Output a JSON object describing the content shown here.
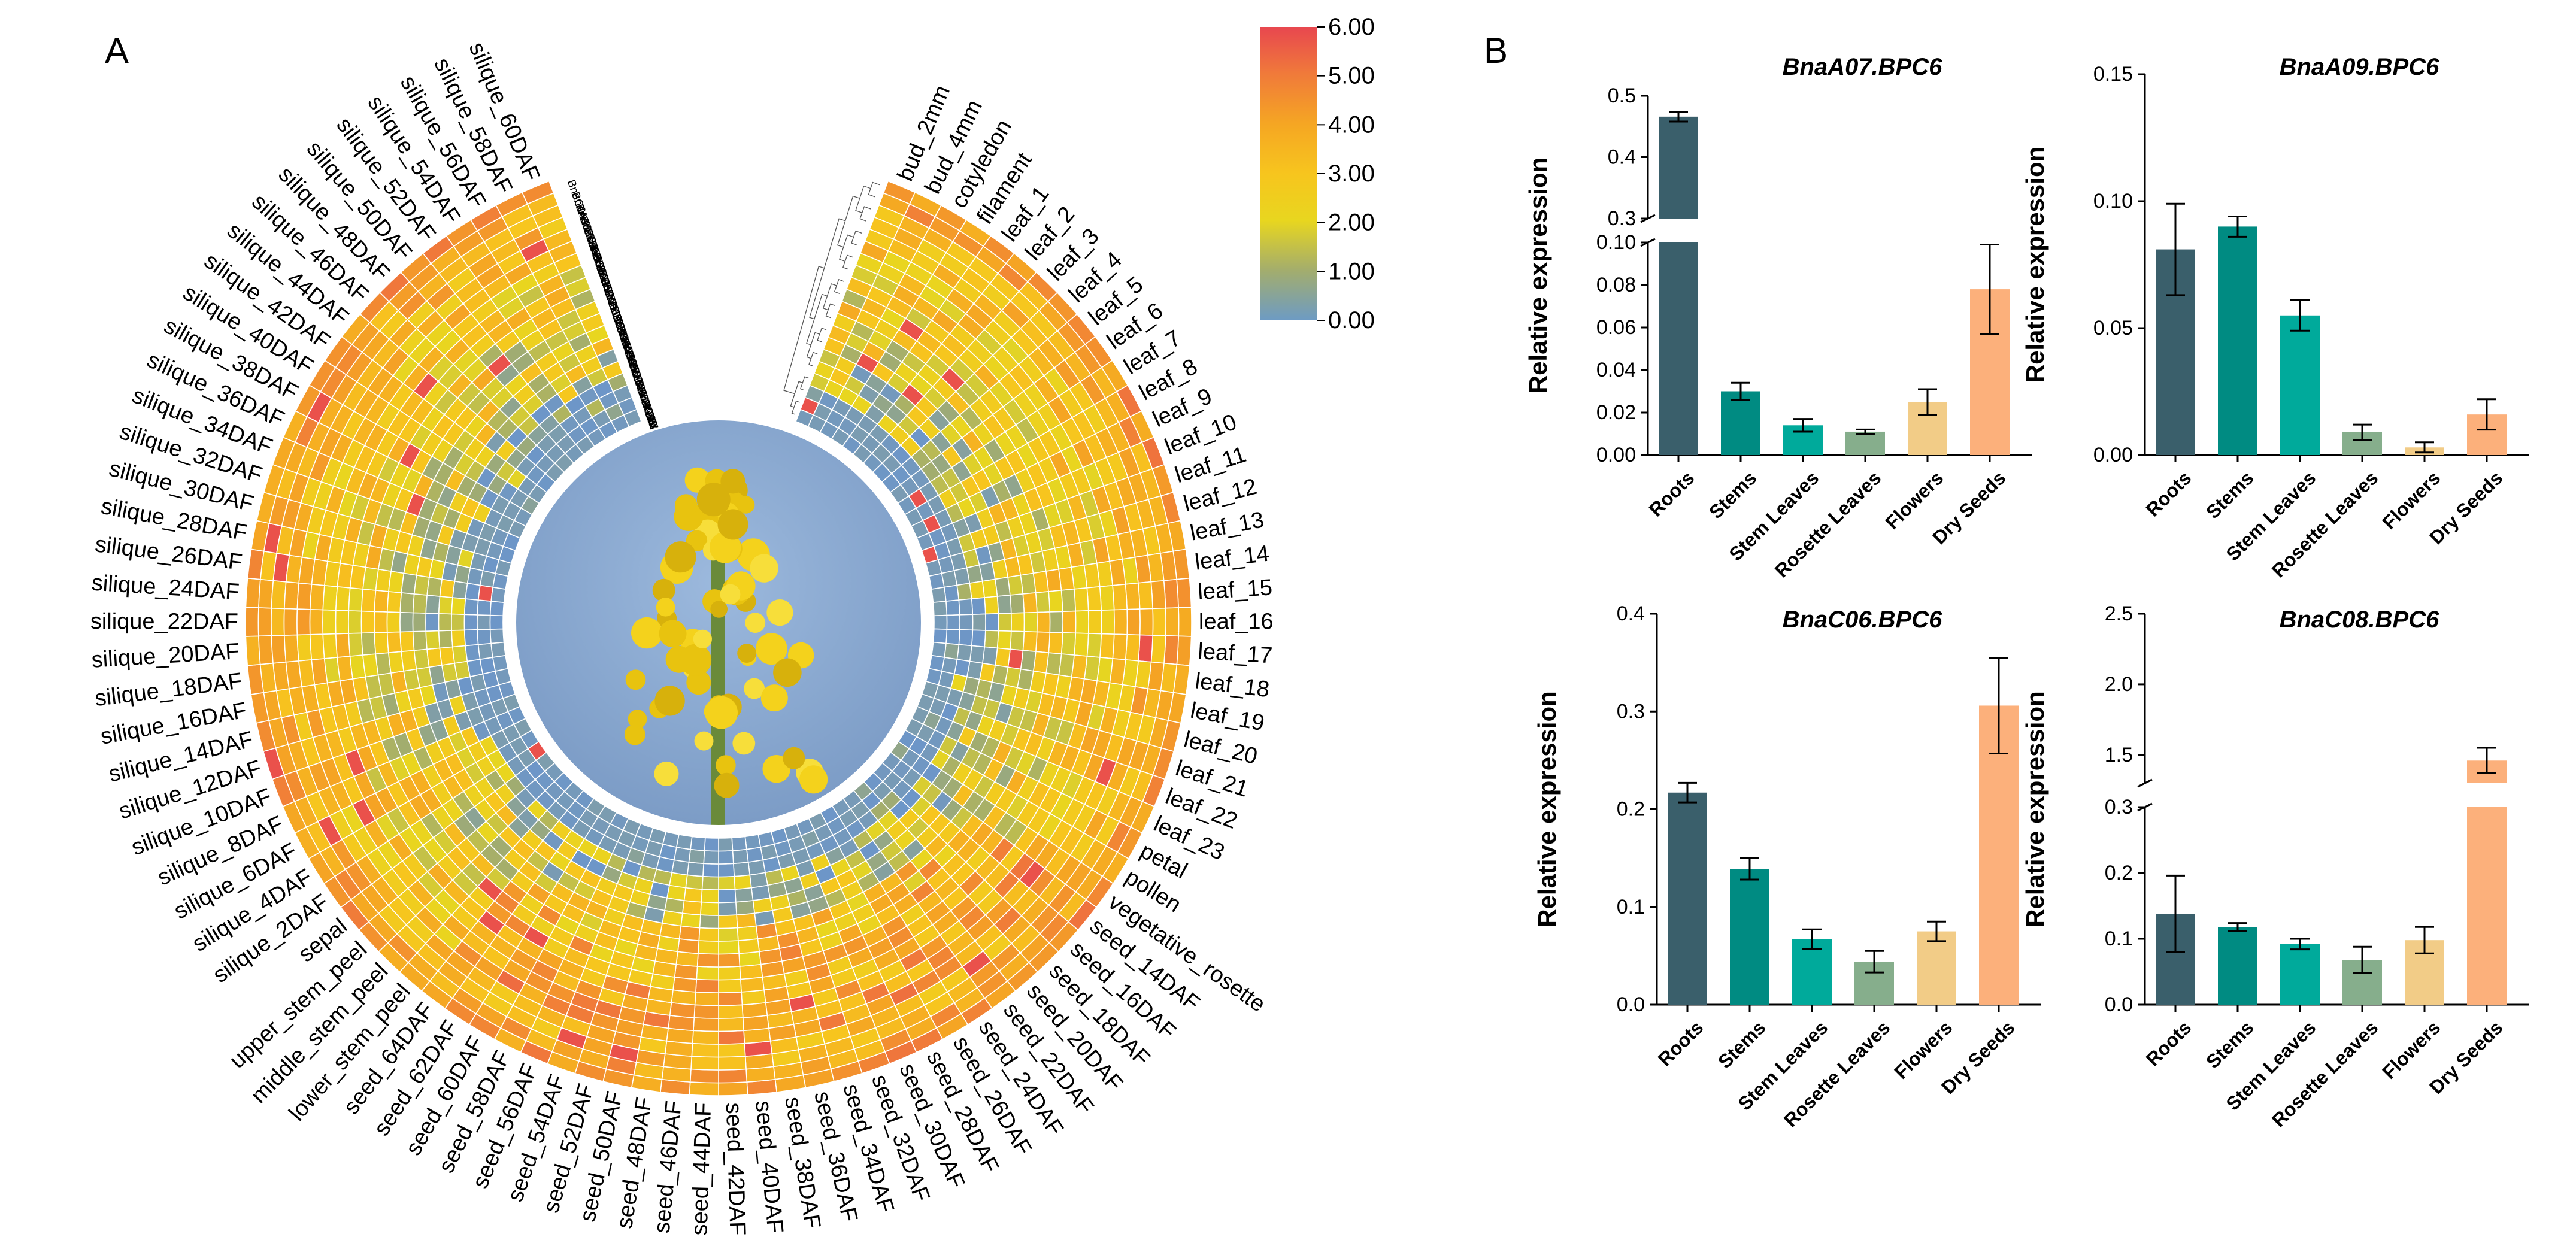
{
  "panels": {
    "a_label": "A",
    "b_label": "B"
  },
  "heatmap": {
    "legend_ticks": [
      "6.00",
      "5.00",
      "4.00",
      "3.00",
      "2.00",
      "1.00",
      "0.00"
    ],
    "legend_colors": [
      "#e8474f",
      "#f07a3a",
      "#f5a623",
      "#f7c51e",
      "#e8d61f",
      "#a3ad6d",
      "#6d9bc4"
    ],
    "low_color": "#6d96c8",
    "photo_alt": "rapeseed flower",
    "genes": [
      "BnaC08.BPC2-2",
      "BnaA08.BPC5",
      "BnaC06.BPC6",
      "BnaC03.BPC1",
      "BnaA05.BPC2",
      "BnaC02.BPC1",
      "BnaA05.BPC7",
      "BnaC09.BPC6",
      "BnaA01.BPC4",
      "BnaC05.BPC3",
      "BnaC04.BPC6",
      "BnaC03.BPC7",
      "BnaA09.BPC6",
      "BnaA06.BPC4",
      "BnaC08.BPC2",
      "BnaA04.BPC3",
      "BnaC09.BPC4",
      "BnaC07.BPC5",
      "BnaA06.BPC5",
      "BnaA01.BPC5"
    ],
    "tissues": [
      "bud_2mm",
      "bud_4mm",
      "cotyledon",
      "filament",
      "leaf_1",
      "leaf_2",
      "leaf_3",
      "leaf_4",
      "leaf_5",
      "leaf_6",
      "leaf_7",
      "leaf_8",
      "leaf_9",
      "leaf_10",
      "leaf_11",
      "leaf_12",
      "leaf_13",
      "leaf_14",
      "leaf_15",
      "leaf_16",
      "leaf_17",
      "leaf_18",
      "leaf_19",
      "leaf_20",
      "leaf_21",
      "leaf_22",
      "leaf_23",
      "petal",
      "pollen",
      "vegetative_rosette",
      "seed_14DAF",
      "seed_16DAF",
      "seed_18DAF",
      "seed_20DAF",
      "seed_22DAF",
      "seed_24DAF",
      "seed_26DAF",
      "seed_28DAF",
      "seed_30DAF",
      "seed_32DAF",
      "seed_34DAF",
      "seed_36DAF",
      "seed_38DAF",
      "seed_40DAF",
      "seed_42DAF",
      "seed_44DAF",
      "seed_46DAF",
      "seed_48DAF",
      "seed_50DAF",
      "seed_52DAF",
      "seed_54DAF",
      "seed_56DAF",
      "seed_58DAF",
      "seed_60DAF",
      "seed_62DAF",
      "seed_64DAF",
      "lower_stem_peel",
      "middle_stem_peel",
      "upper_stem_peel",
      "sepal",
      "silique_2DAF",
      "silique_4DAF",
      "silique_6DAF",
      "silique_8DAF",
      "silique_10DAF",
      "silique_12DAF",
      "silique_14DAF",
      "silique_16DAF",
      "silique_18DAF",
      "silique_20DAF",
      "silique_22DAF",
      "silique_24DAF",
      "silique_26DAF",
      "silique_28DAF",
      "silique_30DAF",
      "silique_32DAF",
      "silique_34DAF",
      "silique_36DAF",
      "silique_38DAF",
      "silique_40DAF",
      "silique_42DAF",
      "silique_44DAF",
      "silique_46DAF",
      "silique_48DAF",
      "silique_50DAF",
      "silique_52DAF",
      "silique_54DAF",
      "silique_56DAF",
      "silique_58DAF",
      "silique_60DAF"
    ]
  },
  "chart_data": [
    {
      "type": "heatmap",
      "title": "",
      "layout": "circular",
      "colorbar_range": [
        0,
        6
      ],
      "rows_outer_to_inner": [
        "BnaC08.BPC2-2",
        "BnaA08.BPC5",
        "BnaC06.BPC6",
        "BnaC03.BPC1",
        "BnaA05.BPC2",
        "BnaC02.BPC1",
        "BnaA05.BPC7",
        "BnaC09.BPC6",
        "BnaA01.BPC4",
        "BnaC05.BPC3",
        "BnaC04.BPC6",
        "BnaC03.BPC7",
        "BnaA09.BPC6",
        "BnaA06.BPC4",
        "BnaC08.BPC2",
        "BnaA04.BPC3",
        "BnaC09.BPC4",
        "BnaC07.BPC5",
        "BnaA06.BPC5",
        "BnaA01.BPC5"
      ],
      "ring_levels": [
        4.4,
        4.0,
        3.6,
        3.4,
        3.2,
        3.0,
        2.9,
        2.7,
        2.6,
        2.5,
        2.4,
        2.2,
        2.1,
        1.9,
        1.7,
        1.4,
        1.2,
        0.9,
        0.5,
        0.2
      ],
      "ring_variation": [
        0.8,
        0.9,
        0.9,
        1.0,
        1.1,
        1.1,
        1.2,
        1.3,
        1.3,
        1.4,
        1.5,
        1.6,
        1.6,
        1.7,
        1.7,
        1.6,
        1.4,
        1.2,
        0.8,
        0.5
      ]
    },
    {
      "type": "bar",
      "title": "BnaA07.BPC6",
      "ylabel": "Relative expression",
      "categories": [
        "Roots",
        "Stems",
        "Stem Leaves",
        "Rosette Leaves",
        "Flowers",
        "Dry Seeds"
      ],
      "values": [
        0.466,
        0.03,
        0.014,
        0.011,
        0.025,
        0.078
      ],
      "errors": [
        0.008,
        0.004,
        0.003,
        0.001,
        0.006,
        0.021
      ],
      "colors": [
        "#3a5f6b",
        "#008b82",
        "#00aa9b",
        "#86ae8c",
        "#f2cc87",
        "#fcb07b"
      ],
      "axis_break": {
        "lower": [
          0,
          0.1
        ],
        "upper": [
          0.3,
          0.5
        ]
      },
      "ticks_lower": [
        "0.00",
        "0.02",
        "0.04",
        "0.06",
        "0.08",
        "0.10"
      ],
      "ticks_upper": [
        "0.3",
        "0.4",
        "0.5"
      ]
    },
    {
      "type": "bar",
      "title": "BnaA09.BPC6",
      "ylabel": "Relative expression",
      "categories": [
        "Roots",
        "Stems",
        "Stem Leaves",
        "Rosette Leaves",
        "Flowers",
        "Dry Seeds"
      ],
      "values": [
        0.081,
        0.09,
        0.055,
        0.009,
        0.003,
        0.016
      ],
      "errors": [
        0.018,
        0.004,
        0.006,
        0.003,
        0.002,
        0.006
      ],
      "colors": [
        "#3a5f6b",
        "#008b82",
        "#00aa9b",
        "#86ae8c",
        "#f2cc87",
        "#fcb07b"
      ],
      "ylim": [
        0,
        0.15
      ],
      "ticks": [
        "0.00",
        "0.05",
        "0.10",
        "0.15"
      ]
    },
    {
      "type": "bar",
      "title": "BnaC06.BPC6",
      "ylabel": "Relative expression",
      "categories": [
        "Roots",
        "Stems",
        "Stem Leaves",
        "Rosette Leaves",
        "Flowers",
        "Dry Seeds"
      ],
      "values": [
        0.217,
        0.139,
        0.067,
        0.044,
        0.075,
        0.306
      ],
      "errors": [
        0.01,
        0.011,
        0.01,
        0.011,
        0.01,
        0.049
      ],
      "colors": [
        "#3a5f6b",
        "#008b82",
        "#00aa9b",
        "#86ae8c",
        "#f2cc87",
        "#fcb07b"
      ],
      "ylim": [
        0,
        0.4
      ],
      "ticks": [
        "0.0",
        "0.1",
        "0.2",
        "0.3",
        "0.4"
      ]
    },
    {
      "type": "bar",
      "title": "BnaC08.BPC6",
      "ylabel": "Relative expression",
      "categories": [
        "Roots",
        "Stems",
        "Stem Leaves",
        "Rosette Leaves",
        "Flowers",
        "Dry Seeds"
      ],
      "values": [
        0.138,
        0.118,
        0.092,
        0.068,
        0.098,
        1.46
      ],
      "errors": [
        0.058,
        0.006,
        0.008,
        0.02,
        0.02,
        0.09
      ],
      "colors": [
        "#3a5f6b",
        "#008b82",
        "#00aa9b",
        "#86ae8c",
        "#f2cc87",
        "#fcb07b"
      ],
      "axis_break": {
        "lower": [
          0,
          0.3
        ],
        "upper": [
          1.3,
          2.5
        ]
      },
      "ticks_lower": [
        "0.0",
        "0.1",
        "0.2",
        "0.3"
      ],
      "ticks_upper": [
        "1.5",
        "2.0",
        "2.5"
      ]
    }
  ]
}
